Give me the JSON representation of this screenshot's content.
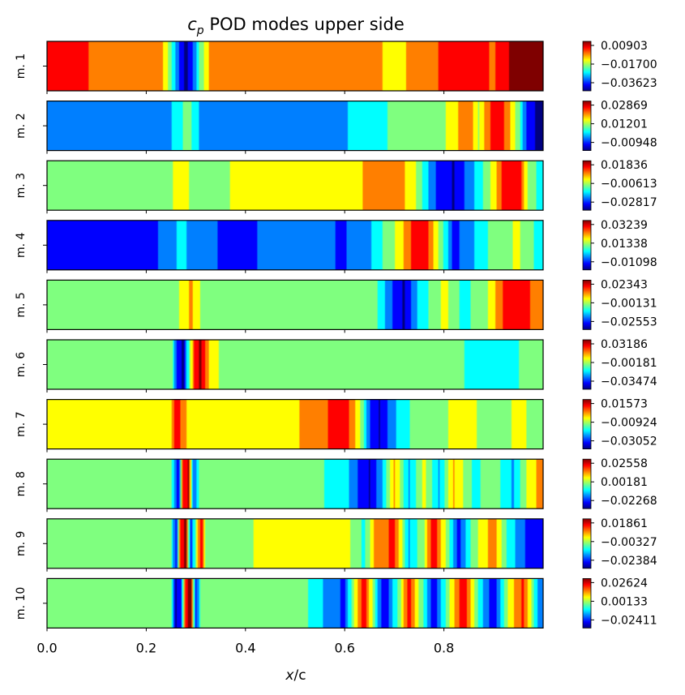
{
  "chart_data": {
    "type": "heatmap",
    "title_var": "c",
    "title_sub": "p",
    "title_rest": " POD modes upper side",
    "xlabel_var": "x",
    "xlabel_rest": "/c",
    "xlim": [
      0,
      1
    ],
    "xticks": [
      "0.0",
      "0.2",
      "0.4",
      "0.6",
      "0.8"
    ],
    "colormap": [
      "#00007f",
      "#0000ff",
      "#007fff",
      "#00ffff",
      "#7fff7f",
      "#ffff00",
      "#ff7f00",
      "#ff0000",
      "#7f0000"
    ],
    "modes": [
      {
        "label": "m. 1",
        "cb_ticks": [
          "0.00903",
          "−0.01700",
          "−0.03623"
        ],
        "profile": [
          [
            0,
            0.82
          ],
          [
            0.22,
            0.8
          ],
          [
            0.235,
            0.68
          ],
          [
            0.25,
            0.48
          ],
          [
            0.265,
            0.2
          ],
          [
            0.28,
            0.03
          ],
          [
            0.295,
            0.2
          ],
          [
            0.31,
            0.5
          ],
          [
            0.33,
            0.72
          ],
          [
            0.35,
            0.76
          ],
          [
            0.6,
            0.74
          ],
          [
            0.65,
            0.72
          ],
          [
            0.7,
            0.66
          ],
          [
            0.76,
            0.73
          ],
          [
            0.78,
            0.8
          ],
          [
            0.82,
            0.85
          ],
          [
            0.86,
            0.85
          ],
          [
            0.9,
            0.8
          ],
          [
            0.92,
            0.9
          ],
          [
            0.95,
            1.0
          ],
          [
            1.0,
            1.0
          ]
        ]
      },
      {
        "label": "m. 2",
        "cb_ticks": [
          "0.02869",
          "0.01201",
          "−0.00948"
        ],
        "profile": [
          [
            0,
            0.3
          ],
          [
            0.25,
            0.3
          ],
          [
            0.27,
            0.42
          ],
          [
            0.285,
            0.5
          ],
          [
            0.3,
            0.36
          ],
          [
            0.32,
            0.2
          ],
          [
            0.38,
            0.22
          ],
          [
            0.48,
            0.25
          ],
          [
            0.6,
            0.3
          ],
          [
            0.65,
            0.4
          ],
          [
            0.7,
            0.45
          ],
          [
            0.75,
            0.5
          ],
          [
            0.8,
            0.55
          ],
          [
            0.85,
            0.78
          ],
          [
            0.87,
            0.55
          ],
          [
            0.9,
            0.9
          ],
          [
            0.92,
            0.84
          ],
          [
            0.95,
            0.5
          ],
          [
            0.97,
            0.12
          ],
          [
            0.99,
            0.03
          ]
        ]
      },
      {
        "label": "m. 3",
        "cb_ticks": [
          "0.01836",
          "−0.00613",
          "−0.02817"
        ],
        "profile": [
          [
            0,
            0.55
          ],
          [
            0.25,
            0.55
          ],
          [
            0.27,
            0.62
          ],
          [
            0.29,
            0.55
          ],
          [
            0.35,
            0.56
          ],
          [
            0.5,
            0.58
          ],
          [
            0.6,
            0.6
          ],
          [
            0.65,
            0.72
          ],
          [
            0.7,
            0.8
          ],
          [
            0.74,
            0.6
          ],
          [
            0.78,
            0.2
          ],
          [
            0.82,
            0.05
          ],
          [
            0.86,
            0.3
          ],
          [
            0.9,
            0.6
          ],
          [
            0.92,
            0.85
          ],
          [
            0.95,
            0.9
          ],
          [
            0.97,
            0.55
          ],
          [
            0.99,
            0.4
          ]
        ]
      },
      {
        "label": "m. 4",
        "cb_ticks": [
          "0.03239",
          "0.01338",
          "−0.01098"
        ],
        "profile": [
          [
            0,
            0.15
          ],
          [
            0.2,
            0.16
          ],
          [
            0.25,
            0.22
          ],
          [
            0.27,
            0.4
          ],
          [
            0.29,
            0.25
          ],
          [
            0.35,
            0.18
          ],
          [
            0.55,
            0.2
          ],
          [
            0.6,
            0.18
          ],
          [
            0.65,
            0.3
          ],
          [
            0.7,
            0.55
          ],
          [
            0.74,
            0.85
          ],
          [
            0.76,
            0.9
          ],
          [
            0.79,
            0.55
          ],
          [
            0.82,
            0.15
          ],
          [
            0.85,
            0.25
          ],
          [
            0.9,
            0.5
          ],
          [
            0.95,
            0.58
          ],
          [
            0.99,
            0.4
          ]
        ]
      },
      {
        "label": "m. 5",
        "cb_ticks": [
          "0.02343",
          "−0.00131",
          "−0.02553"
        ],
        "profile": [
          [
            0,
            0.48
          ],
          [
            0.25,
            0.48
          ],
          [
            0.27,
            0.58
          ],
          [
            0.29,
            0.72
          ],
          [
            0.31,
            0.55
          ],
          [
            0.33,
            0.5
          ],
          [
            0.55,
            0.52
          ],
          [
            0.62,
            0.55
          ],
          [
            0.66,
            0.5
          ],
          [
            0.7,
            0.15
          ],
          [
            0.72,
            0.05
          ],
          [
            0.75,
            0.35
          ],
          [
            0.8,
            0.6
          ],
          [
            0.84,
            0.4
          ],
          [
            0.88,
            0.5
          ],
          [
            0.92,
            0.82
          ],
          [
            0.96,
            0.92
          ],
          [
            0.99,
            0.7
          ]
        ]
      },
      {
        "label": "m. 6",
        "cb_ticks": [
          "0.03186",
          "−0.00181",
          "−0.03474"
        ],
        "profile": [
          [
            0,
            0.52
          ],
          [
            0.25,
            0.52
          ],
          [
            0.265,
            0.1
          ],
          [
            0.275,
            0.03
          ],
          [
            0.29,
            0.6
          ],
          [
            0.3,
            0.9
          ],
          [
            0.31,
            0.95
          ],
          [
            0.33,
            0.62
          ],
          [
            0.35,
            0.55
          ],
          [
            0.55,
            0.55
          ],
          [
            0.6,
            0.5
          ],
          [
            0.7,
            0.46
          ],
          [
            0.8,
            0.45
          ],
          [
            0.9,
            0.42
          ],
          [
            0.99,
            0.45
          ]
        ]
      },
      {
        "label": "m. 7",
        "cb_ticks": [
          "0.01573",
          "−0.00924",
          "−0.03052"
        ],
        "profile": [
          [
            0,
            0.64
          ],
          [
            0.25,
            0.64
          ],
          [
            0.26,
            0.9
          ],
          [
            0.27,
            0.8
          ],
          [
            0.29,
            0.6
          ],
          [
            0.45,
            0.62
          ],
          [
            0.5,
            0.68
          ],
          [
            0.55,
            0.72
          ],
          [
            0.58,
            0.88
          ],
          [
            0.6,
            0.9
          ],
          [
            0.63,
            0.6
          ],
          [
            0.65,
            0.2
          ],
          [
            0.67,
            0.05
          ],
          [
            0.7,
            0.3
          ],
          [
            0.75,
            0.52
          ],
          [
            0.8,
            0.55
          ],
          [
            0.85,
            0.62
          ],
          [
            0.9,
            0.45
          ],
          [
            0.95,
            0.6
          ],
          [
            0.99,
            0.5
          ]
        ]
      },
      {
        "label": "m. 8",
        "cb_ticks": [
          "0.02558",
          "0.00181",
          "−0.02268"
        ],
        "profile": [
          [
            0,
            0.44
          ],
          [
            0.25,
            0.44
          ],
          [
            0.265,
            0.1
          ],
          [
            0.275,
            0.9
          ],
          [
            0.285,
            0.95
          ],
          [
            0.295,
            0.2
          ],
          [
            0.31,
            0.5
          ],
          [
            0.33,
            0.44
          ],
          [
            0.55,
            0.45
          ],
          [
            0.6,
            0.38
          ],
          [
            0.63,
            0.15
          ],
          [
            0.65,
            0.05
          ],
          [
            0.68,
            0.35
          ],
          [
            0.7,
            0.7
          ],
          [
            0.73,
            0.3
          ],
          [
            0.76,
            0.6
          ],
          [
            0.79,
            0.3
          ],
          [
            0.82,
            0.7
          ],
          [
            0.86,
            0.4
          ],
          [
            0.9,
            0.5
          ],
          [
            0.94,
            0.3
          ],
          [
            0.97,
            0.6
          ],
          [
            0.99,
            0.7
          ]
        ]
      },
      {
        "label": "m. 9",
        "cb_ticks": [
          "0.01861",
          "−0.00327",
          "−0.02384"
        ],
        "profile": [
          [
            0,
            0.52
          ],
          [
            0.25,
            0.52
          ],
          [
            0.26,
            0.1
          ],
          [
            0.27,
            0.9
          ],
          [
            0.28,
            0.95
          ],
          [
            0.29,
            0.15
          ],
          [
            0.3,
            0.5
          ],
          [
            0.31,
            0.9
          ],
          [
            0.32,
            0.55
          ],
          [
            0.55,
            0.58
          ],
          [
            0.6,
            0.62
          ],
          [
            0.64,
            0.4
          ],
          [
            0.66,
            0.72
          ],
          [
            0.7,
            0.85
          ],
          [
            0.73,
            0.3
          ],
          [
            0.76,
            0.55
          ],
          [
            0.78,
            0.92
          ],
          [
            0.8,
            0.6
          ],
          [
            0.83,
            0.15
          ],
          [
            0.86,
            0.5
          ],
          [
            0.9,
            0.75
          ],
          [
            0.93,
            0.4
          ],
          [
            0.96,
            0.2
          ],
          [
            0.99,
            0.1
          ]
        ]
      },
      {
        "label": "m. 10",
        "cb_ticks": [
          "0.02624",
          "0.00133",
          "−0.02411"
        ],
        "profile": [
          [
            0,
            0.45
          ],
          [
            0.25,
            0.45
          ],
          [
            0.26,
            0.05
          ],
          [
            0.27,
            0.15
          ],
          [
            0.28,
            0.92
          ],
          [
            0.29,
            0.97
          ],
          [
            0.3,
            0.12
          ],
          [
            0.31,
            0.5
          ],
          [
            0.33,
            0.45
          ],
          [
            0.52,
            0.46
          ],
          [
            0.56,
            0.3
          ],
          [
            0.6,
            0.15
          ],
          [
            0.62,
            0.6
          ],
          [
            0.64,
            0.9
          ],
          [
            0.66,
            0.45
          ],
          [
            0.68,
            0.08
          ],
          [
            0.71,
            0.5
          ],
          [
            0.73,
            0.88
          ],
          [
            0.76,
            0.4
          ],
          [
            0.78,
            0.1
          ],
          [
            0.81,
            0.55
          ],
          [
            0.84,
            0.9
          ],
          [
            0.87,
            0.4
          ],
          [
            0.9,
            0.1
          ],
          [
            0.93,
            0.6
          ],
          [
            0.96,
            0.85
          ],
          [
            0.99,
            0.3
          ]
        ]
      }
    ]
  }
}
